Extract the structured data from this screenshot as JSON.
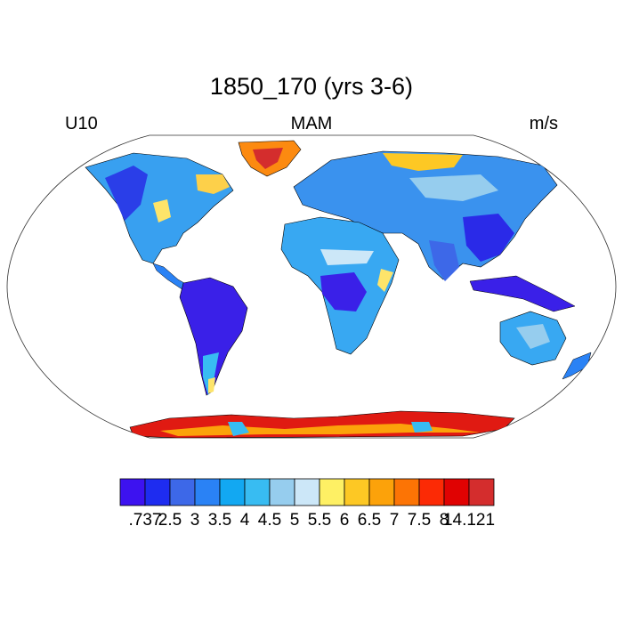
{
  "title": "1850_170 (yrs 3-6)",
  "left_label": "U10",
  "center_label": "MAM",
  "right_label": "m/s",
  "colorbar": {
    "colors": [
      "#3d12f0",
      "#1e2cf0",
      "#3d68e8",
      "#2a82f5",
      "#12a8f2",
      "#38bcf2",
      "#96cdee",
      "#cce7f8",
      "#fef064",
      "#fdc824",
      "#fca20a",
      "#fc7405",
      "#fc2a05",
      "#e00202",
      "#d42d2d"
    ],
    "tick_labels": [
      ".737",
      "2.5",
      "3",
      "3.5",
      "4",
      "4.5",
      "5",
      "5.5",
      "6",
      "6.5",
      "7",
      "7.5",
      "8",
      "14.121"
    ]
  }
}
